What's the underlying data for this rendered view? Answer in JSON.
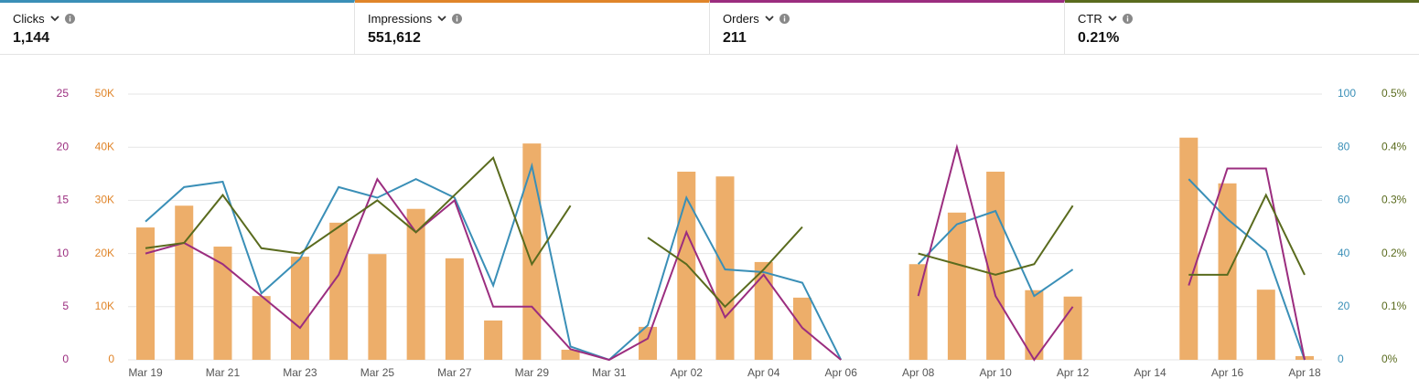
{
  "chart_data": {
    "type": "combo",
    "grid": true,
    "categories": [
      "Mar 19",
      null,
      "Mar 21",
      null,
      "Mar 23",
      null,
      "Mar 25",
      null,
      "Mar 27",
      null,
      "Mar 29",
      null,
      "Mar 31",
      null,
      "Apr 02",
      null,
      "Apr 04",
      null,
      "Apr 06",
      null,
      "Apr 08",
      null,
      "Apr 10",
      null,
      "Apr 12",
      null,
      "Apr 14",
      null,
      "Apr 16",
      null,
      "Apr 18"
    ],
    "series": [
      {
        "name": "Clicks",
        "total": "1,144",
        "type": "line",
        "color": "#3a8fb7",
        "axis": "right",
        "ylim": [
          0,
          100
        ],
        "yticks": [
          0,
          20,
          40,
          60,
          80,
          100
        ],
        "values": [
          52,
          65,
          67,
          25,
          38,
          65,
          61,
          68,
          61,
          28,
          73,
          5,
          0,
          13,
          61,
          34,
          33,
          29,
          0,
          null,
          36,
          51,
          56,
          24,
          34,
          null,
          null,
          68,
          53,
          41,
          0
        ]
      },
      {
        "name": "Impressions",
        "total": "551,612",
        "type": "bar",
        "color": "#edae6a",
        "axis": "left",
        "title_color": "#e0852a",
        "ylim": [
          0,
          50000
        ],
        "yticks": [
          0,
          {
            "value": 10000,
            "label": "10K"
          },
          {
            "value": 20000,
            "label": "20K"
          },
          {
            "value": 30000,
            "label": "30K"
          },
          {
            "value": 40000,
            "label": "40K"
          },
          {
            "value": 50000,
            "label": "50K"
          }
        ],
        "values": [
          24900,
          29000,
          21300,
          12000,
          19400,
          25800,
          19900,
          28400,
          19100,
          7400,
          40700,
          1900,
          0,
          6200,
          35400,
          34500,
          18400,
          11700,
          0,
          null,
          18000,
          27700,
          35400,
          13100,
          11900,
          null,
          null,
          41800,
          33200,
          13200,
          700
        ]
      },
      {
        "name": "Orders",
        "total": "211",
        "type": "line",
        "color": "#9b2d7f",
        "axis": "left",
        "ylim": [
          0,
          25
        ],
        "yticks": [
          0,
          5,
          10,
          15,
          20,
          25
        ],
        "values": [
          10,
          11,
          9,
          6,
          3,
          8,
          17,
          12,
          15,
          5,
          5,
          1,
          0,
          2,
          12,
          4,
          8,
          3,
          0,
          null,
          6,
          20,
          6,
          0,
          5,
          null,
          null,
          7,
          18,
          18,
          0
        ]
      },
      {
        "name": "CTR",
        "total": "0.21%",
        "type": "line",
        "color": "#5a6b1e",
        "axis": "right",
        "ylim": [
          0,
          0.5
        ],
        "yticks": [
          {
            "value": 0,
            "label": "0%"
          },
          {
            "value": 0.1,
            "label": "0.1%"
          },
          {
            "value": 0.2,
            "label": "0.2%"
          },
          {
            "value": 0.3,
            "label": "0.3%"
          },
          {
            "value": 0.4,
            "label": "0.4%"
          },
          {
            "value": 0.5,
            "label": "0.5%"
          }
        ],
        "values": [
          0.21,
          0.22,
          0.31,
          0.21,
          0.2,
          0.25,
          0.3,
          0.24,
          0.31,
          0.38,
          0.18,
          0.29,
          null,
          0.23,
          0.18,
          0.1,
          0.17,
          0.25,
          null,
          null,
          0.2,
          0.18,
          0.16,
          0.18,
          0.29,
          null,
          null,
          0.16,
          0.16,
          0.31,
          0.16
        ]
      }
    ]
  }
}
